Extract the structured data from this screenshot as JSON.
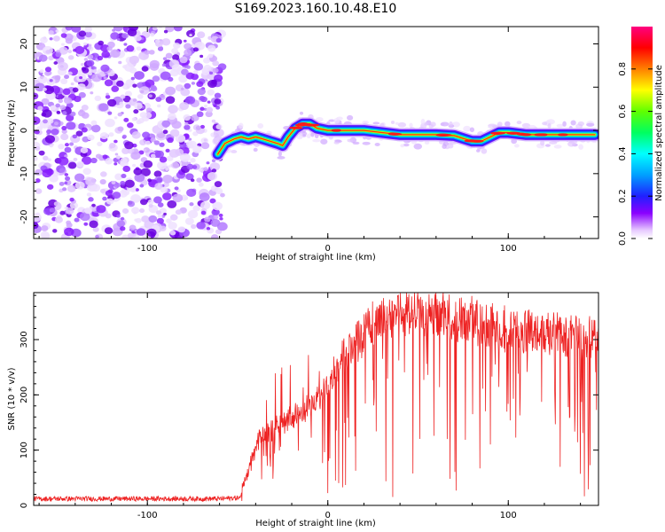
{
  "title": "S169.2023.160.10.48.E10",
  "colors": {
    "snr_line": "#ee2222",
    "background": "#ffffff",
    "axis": "#000000"
  },
  "chart_data": [
    {
      "type": "heatmap",
      "name": "spectrogram",
      "xlabel": "Height of straight line (km)",
      "ylabel": "Frequency (Hz)",
      "xlim": [
        -163,
        150
      ],
      "ylim": [
        -25,
        24
      ],
      "xticks": [
        -100,
        0,
        100
      ],
      "xtick_labels": [
        "-100",
        "0",
        "100"
      ],
      "yticks": [
        -20,
        -10,
        0,
        10,
        20
      ],
      "ytick_labels": [
        "-20",
        "-10",
        "0",
        "10",
        "20"
      ],
      "noise_region_x": [
        -163,
        -60
      ],
      "ridge": {
        "x": [
          -61,
          -57,
          -52,
          -48,
          -44,
          -40,
          -36,
          -32,
          -28,
          -25,
          -22,
          -18,
          -14,
          -10,
          -6,
          0,
          10,
          20,
          30,
          40,
          50,
          60,
          70,
          76,
          80,
          85,
          90,
          95,
          100,
          110,
          120,
          130,
          140,
          148
        ],
        "y": [
          -5.5,
          -3,
          -2,
          -1.5,
          -2,
          -1.5,
          -2,
          -2.5,
          -3,
          -3.5,
          -1.5,
          0.5,
          1.5,
          1.5,
          0.5,
          0,
          0,
          0,
          -0.5,
          -1,
          -1,
          -1,
          -1.2,
          -2,
          -2.5,
          -2.5,
          -1.5,
          -0.5,
          -0.5,
          -1,
          -1,
          -1,
          -1,
          -1
        ]
      },
      "colorbar": {
        "label": "Normalized spectral amplitude",
        "range": [
          0,
          1
        ],
        "ticks": [
          0.0,
          0.2,
          0.4,
          0.6,
          0.8
        ],
        "tick_labels": [
          "0.0",
          "0.2",
          "0.4",
          "0.6",
          "0.8"
        ]
      }
    },
    {
      "type": "line",
      "name": "snr",
      "xlabel": "Height of straight line (km)",
      "ylabel": "SNR (10 * v/v)",
      "xlim": [
        -163,
        150
      ],
      "ylim": [
        0,
        385
      ],
      "xticks": [
        -100,
        0,
        100
      ],
      "xtick_labels": [
        "-100",
        "0",
        "100"
      ],
      "yticks": [
        0,
        100,
        200,
        300
      ],
      "ytick_labels": [
        "0",
        "100",
        "200",
        "300"
      ],
      "series": [
        {
          "name": "SNR",
          "envelope": {
            "x": [
              -163,
              -60,
              -48,
              -44,
              -40,
              -35,
              -30,
              -25,
              -20,
              -15,
              -10,
              -5,
              0,
              5,
              10,
              15,
              20,
              25,
              30,
              40,
              50,
              60,
              70,
              80,
              90,
              100,
              110,
              120,
              130,
              140,
              150
            ],
            "mean": [
              12,
              12,
              14,
              40,
              90,
              110,
              120,
              135,
              140,
              150,
              160,
              175,
              200,
              230,
              255,
              280,
              295,
              310,
              320,
              330,
              330,
              325,
              320,
              315,
              305,
              300,
              295,
              295,
              290,
              290,
              285
            ]
          }
        }
      ]
    }
  ]
}
